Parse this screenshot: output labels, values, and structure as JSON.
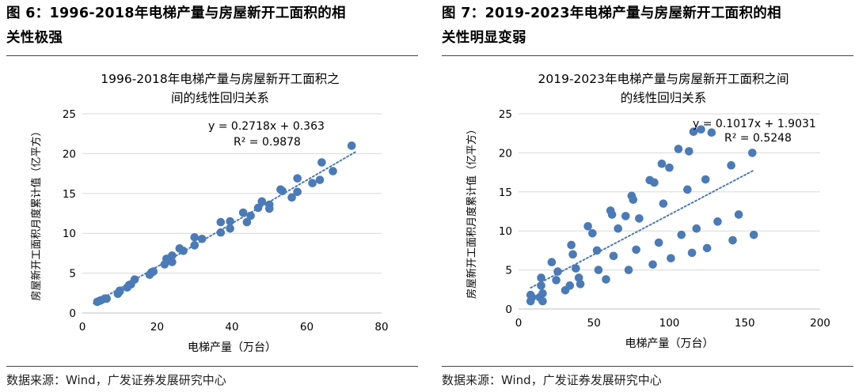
{
  "figures": [
    {
      "heading_line1": "图 6：1996-2018年电梯产量与房屋新开工面积的相",
      "heading_line2": "关性极强",
      "source": "数据来源：Wind，广发证券发展研究中心",
      "chart_data": {
        "type": "scatter",
        "title_line1": "1996-2018年电梯产量与房屋新开工面积之",
        "title_line2": "间的线性回归关系",
        "xlabel": "电梯产量（万台）",
        "ylabel": "房屋新开工面积月度累计值（亿平方）",
        "xlim": [
          0,
          80
        ],
        "ylim": [
          0,
          25
        ],
        "xticks": [
          0,
          20,
          40,
          60,
          80
        ],
        "yticks": [
          0,
          5,
          10,
          15,
          20,
          25
        ],
        "grid": "horizontal",
        "marker_color": "#4a7ab8",
        "trend_color": "#4a7ab8",
        "trendline": {
          "slope": 0.2718,
          "intercept": 0.363,
          "x_range": [
            3,
            73
          ],
          "style": "dotted"
        },
        "equation": "y = 0.2718x + 0.363",
        "r2": "R² = 0.9878",
        "points": [
          [
            4,
            1.4
          ],
          [
            4.5,
            1.5
          ],
          [
            5,
            1.6
          ],
          [
            6,
            1.8
          ],
          [
            6.5,
            1.8
          ],
          [
            9.5,
            2.4
          ],
          [
            10,
            2.7
          ],
          [
            10,
            2.8
          ],
          [
            12,
            3.2
          ],
          [
            12.5,
            3.5
          ],
          [
            13,
            3.6
          ],
          [
            14,
            4.2
          ],
          [
            18,
            4.8
          ],
          [
            18.5,
            5.1
          ],
          [
            19,
            5.2
          ],
          [
            22,
            6.1
          ],
          [
            22.5,
            6.8
          ],
          [
            24,
            7.2
          ],
          [
            24,
            6.4
          ],
          [
            26,
            8.1
          ],
          [
            27,
            7.8
          ],
          [
            30,
            8.5
          ],
          [
            30,
            9.5
          ],
          [
            32,
            9.3
          ],
          [
            37,
            10.1
          ],
          [
            37,
            11.4
          ],
          [
            39.5,
            10.6
          ],
          [
            39.5,
            11.5
          ],
          [
            43,
            12.6
          ],
          [
            44,
            11.4
          ],
          [
            45,
            12.2
          ],
          [
            47,
            13.2
          ],
          [
            48,
            14
          ],
          [
            50,
            13.6
          ],
          [
            50,
            13.1
          ],
          [
            53,
            15.5
          ],
          [
            53.5,
            15.3
          ],
          [
            56,
            14.5
          ],
          [
            57.5,
            16.9
          ],
          [
            57.5,
            15.2
          ],
          [
            61.5,
            16.3
          ],
          [
            63.5,
            16.7
          ],
          [
            64,
            18.9
          ],
          [
            67,
            17.8
          ],
          [
            72,
            21
          ]
        ]
      }
    },
    {
      "heading_line1": "图 7：2019-2023年电梯产量与房屋新开工面积的相",
      "heading_line2": "关性明显变弱",
      "source": "数据来源：Wind，广发证券发展研究中心",
      "chart_data": {
        "type": "scatter",
        "title_line1": "2019-2023年电梯产量与房屋新开工面积之间",
        "title_line2": "的线性回归关系",
        "xlabel": "电梯产量（万台）",
        "ylabel": "房屋新开工面积月度累计值（亿平方）",
        "xlim": [
          0,
          200
        ],
        "ylim": [
          0,
          25
        ],
        "xticks": [
          0,
          50,
          100,
          150,
          200
        ],
        "yticks": [
          0,
          5,
          10,
          15,
          20,
          25
        ],
        "grid": "horizontal",
        "marker_color": "#4a7ab8",
        "trend_color": "#4a7ab8",
        "trendline": {
          "slope": 0.1017,
          "intercept": 1.9031,
          "x_range": [
            8,
            156
          ],
          "style": "dotted"
        },
        "equation": "y = 0.1017x + 1.9031",
        "r2": "R² = 0.5248",
        "points": [
          [
            8,
            1
          ],
          [
            8,
            1.8
          ],
          [
            9,
            1.5
          ],
          [
            14,
            1.5
          ],
          [
            15,
            4
          ],
          [
            15,
            3
          ],
          [
            16,
            2
          ],
          [
            16,
            1
          ],
          [
            22,
            6
          ],
          [
            25,
            3.7
          ],
          [
            26,
            4.8
          ],
          [
            31,
            2.4
          ],
          [
            34,
            3
          ],
          [
            35,
            8.2
          ],
          [
            36,
            7
          ],
          [
            38,
            5.2
          ],
          [
            40,
            4
          ],
          [
            41,
            3.2
          ],
          [
            46,
            10.6
          ],
          [
            49,
            9.7
          ],
          [
            52,
            7.5
          ],
          [
            53,
            5
          ],
          [
            58,
            3.8
          ],
          [
            61,
            12.6
          ],
          [
            62,
            12.1
          ],
          [
            63,
            6.8
          ],
          [
            66,
            10.3
          ],
          [
            71,
            11.9
          ],
          [
            73,
            5
          ],
          [
            75,
            14.5
          ],
          [
            76,
            14
          ],
          [
            78,
            7.6
          ],
          [
            80,
            11.6
          ],
          [
            87,
            16.5
          ],
          [
            89,
            5.7
          ],
          [
            90,
            16.2
          ],
          [
            93,
            8.5
          ],
          [
            95,
            18.6
          ],
          [
            96,
            13.5
          ],
          [
            100,
            18.1
          ],
          [
            101,
            6.5
          ],
          [
            106,
            20.5
          ],
          [
            108,
            9.5
          ],
          [
            112,
            15.3
          ],
          [
            113,
            20.2
          ],
          [
            115,
            7.2
          ],
          [
            116,
            22.7
          ],
          [
            118,
            10.3
          ],
          [
            121,
            23
          ],
          [
            124,
            16.6
          ],
          [
            125,
            7.8
          ],
          [
            128,
            22.6
          ],
          [
            132,
            11.2
          ],
          [
            141,
            18.4
          ],
          [
            142,
            8.8
          ],
          [
            146,
            12.1
          ],
          [
            155,
            20
          ],
          [
            156,
            9.5
          ]
        ]
      }
    }
  ]
}
